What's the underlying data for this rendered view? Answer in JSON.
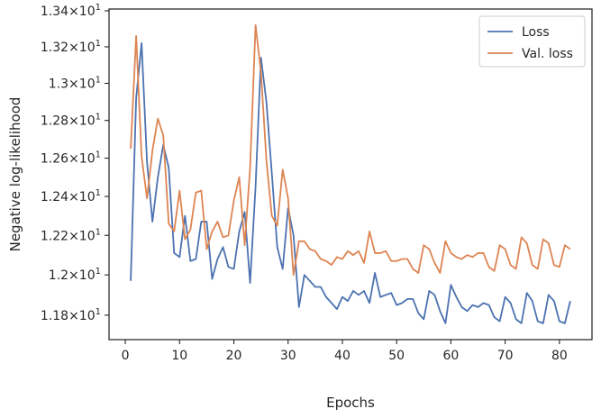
{
  "chart_data": {
    "type": "line",
    "xlabel": "Epochs",
    "ylabel": "Negative log-likelihood",
    "yscale": "log",
    "xlim": [
      -3,
      86
    ],
    "ylim": [
      11.68,
      13.41
    ],
    "x_ticks": [
      0,
      10,
      20,
      30,
      40,
      50,
      60,
      70,
      80
    ],
    "x_tick_labels": [
      "0",
      "10",
      "20",
      "30",
      "40",
      "50",
      "60",
      "70",
      "80"
    ],
    "y_ticks": [
      11.8,
      12.0,
      12.2,
      12.4,
      12.6,
      12.8,
      13.0,
      13.2,
      13.4
    ],
    "y_tick_labels": [
      {
        "mant": "1.18",
        "base": "10",
        "exp": "1"
      },
      {
        "mant": "1.2",
        "base": "10",
        "exp": "1"
      },
      {
        "mant": "1.22",
        "base": "10",
        "exp": "1"
      },
      {
        "mant": "1.24",
        "base": "10",
        "exp": "1"
      },
      {
        "mant": "1.26",
        "base": "10",
        "exp": "1"
      },
      {
        "mant": "1.28",
        "base": "10",
        "exp": "1"
      },
      {
        "mant": "1.3",
        "base": "10",
        "exp": "1"
      },
      {
        "mant": "1.32",
        "base": "10",
        "exp": "1"
      },
      {
        "mant": "1.34",
        "base": "10",
        "exp": "1"
      }
    ],
    "grid": false,
    "legend": "top-right",
    "x": [
      1,
      2,
      3,
      4,
      5,
      6,
      7,
      8,
      9,
      10,
      11,
      12,
      13,
      14,
      15,
      16,
      17,
      18,
      19,
      20,
      21,
      22,
      23,
      24,
      25,
      26,
      27,
      28,
      29,
      30,
      31,
      32,
      33,
      34,
      35,
      36,
      37,
      38,
      39,
      40,
      41,
      42,
      43,
      44,
      45,
      46,
      47,
      48,
      49,
      50,
      51,
      52,
      53,
      54,
      55,
      56,
      57,
      58,
      59,
      60,
      61,
      62,
      63,
      64,
      65,
      66,
      67,
      68,
      69,
      70,
      71,
      72,
      73,
      74,
      75,
      76,
      77,
      78,
      79,
      80,
      81,
      82
    ],
    "series": [
      {
        "name": "Loss",
        "color": "#4c72b0",
        "values": [
          11.97,
          12.92,
          13.22,
          12.58,
          12.27,
          12.5,
          12.67,
          12.55,
          12.11,
          12.09,
          12.3,
          12.07,
          12.08,
          12.27,
          12.27,
          11.98,
          12.08,
          12.14,
          12.04,
          12.03,
          12.22,
          12.32,
          11.96,
          12.45,
          13.14,
          12.9,
          12.52,
          12.14,
          12.03,
          12.34,
          12.2,
          11.84,
          12.0,
          11.97,
          11.94,
          11.94,
          11.89,
          11.86,
          11.83,
          11.89,
          11.87,
          11.92,
          11.9,
          11.92,
          11.86,
          12.01,
          11.89,
          11.9,
          11.91,
          11.85,
          11.86,
          11.88,
          11.88,
          11.81,
          11.78,
          11.92,
          11.9,
          11.82,
          11.76,
          11.95,
          11.89,
          11.84,
          11.82,
          11.85,
          11.84,
          11.86,
          11.85,
          11.79,
          11.77,
          11.89,
          11.86,
          11.78,
          11.76,
          11.91,
          11.87,
          11.77,
          11.76,
          11.9,
          11.87,
          11.77,
          11.76,
          11.87
        ]
      },
      {
        "name": "Val. loss",
        "color": "#dd8452",
        "values": [
          12.65,
          13.26,
          12.61,
          12.39,
          12.64,
          12.81,
          12.72,
          12.26,
          12.22,
          12.43,
          12.18,
          12.23,
          12.42,
          12.43,
          12.13,
          12.22,
          12.27,
          12.19,
          12.2,
          12.38,
          12.5,
          12.15,
          12.55,
          13.32,
          13.06,
          12.59,
          12.3,
          12.25,
          12.54,
          12.39,
          12.0,
          12.17,
          12.17,
          12.13,
          12.12,
          12.08,
          12.07,
          12.05,
          12.09,
          12.08,
          12.12,
          12.1,
          12.12,
          12.06,
          12.22,
          12.11,
          12.11,
          12.12,
          12.07,
          12.07,
          12.08,
          12.08,
          12.03,
          12.01,
          12.15,
          12.13,
          12.06,
          12.01,
          12.17,
          12.11,
          12.09,
          12.08,
          12.1,
          12.09,
          12.11,
          12.11,
          12.04,
          12.02,
          12.15,
          12.13,
          12.05,
          12.03,
          12.19,
          12.16,
          12.05,
          12.03,
          12.18,
          12.16,
          12.05,
          12.04,
          12.15,
          12.13
        ]
      }
    ]
  }
}
